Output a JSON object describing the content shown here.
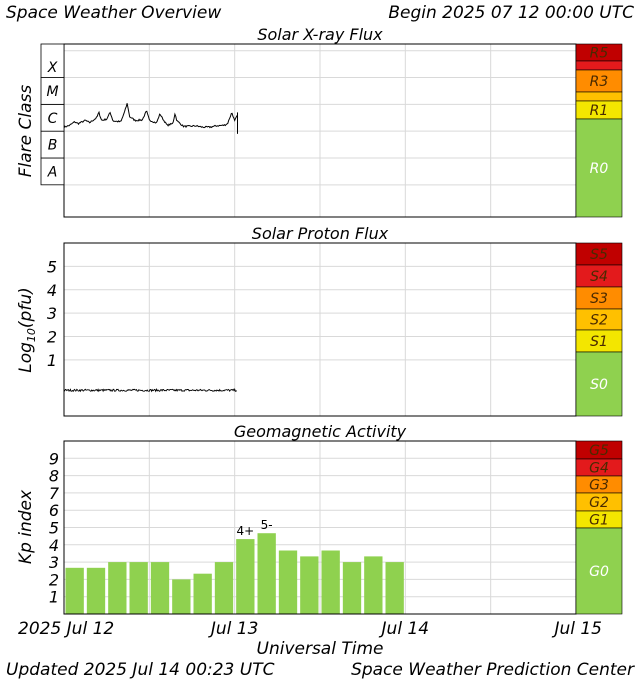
{
  "header": {
    "title": "Space Weather Overview",
    "begin": "Begin 2025 07 12 00:00 UTC"
  },
  "footer": {
    "updated": "Updated 2025 Jul 14 00:23 UTC",
    "center": "Space Weather Prediction Center",
    "xlabel": "Universal Time"
  },
  "colors": {
    "scale5": "#c00000",
    "scale4": "#e31a1c",
    "scale3": "#ff8c00",
    "scale2": "#ffc000",
    "scale1": "#f3e600",
    "scale0": "#8fd14f",
    "bar_green": "#8fd14f",
    "line": "#000000",
    "grid": "#d9d9d9"
  },
  "time_axis": {
    "ticks": [
      "2025 Jul 12",
      "Jul 13",
      "Jul 14",
      "Jul 15"
    ],
    "range_hours": [
      0,
      72
    ]
  },
  "chart_data": [
    {
      "type": "line",
      "title": "Solar X-ray Flux",
      "ylabel": "Flare Class",
      "y_scale": "log",
      "y_unit": "W/m^2",
      "ylim_log10": [
        -9.2,
        -2.75
      ],
      "class_labels": [
        {
          "label": "A",
          "log10": -7.5
        },
        {
          "label": "B",
          "log10": -6.5
        },
        {
          "label": "C",
          "log10": -5.5
        },
        {
          "label": "M",
          "log10": -4.5
        },
        {
          "label": "X",
          "log10": -3.6
        }
      ],
      "x_range_hours": [
        0,
        72
      ],
      "data_end_hours": 24.4,
      "series": [
        {
          "values_hours_log10": [
            [
              0.0,
              -5.85
            ],
            [
              0.8,
              -5.78
            ],
            [
              1.5,
              -5.65
            ],
            [
              2.0,
              -5.72
            ],
            [
              3.0,
              -5.6
            ],
            [
              3.6,
              -5.68
            ],
            [
              4.6,
              -5.5
            ],
            [
              4.9,
              -5.3
            ],
            [
              5.3,
              -5.6
            ],
            [
              6.0,
              -5.55
            ],
            [
              6.5,
              -5.3
            ],
            [
              6.9,
              -5.62
            ],
            [
              8.0,
              -5.65
            ],
            [
              8.6,
              -5.22
            ],
            [
              8.9,
              -4.95
            ],
            [
              9.2,
              -5.45
            ],
            [
              10.0,
              -5.6
            ],
            [
              11.0,
              -5.58
            ],
            [
              11.6,
              -5.25
            ],
            [
              12.0,
              -5.58
            ],
            [
              13.0,
              -5.7
            ],
            [
              13.5,
              -5.35
            ],
            [
              13.8,
              -5.5
            ],
            [
              14.5,
              -5.78
            ],
            [
              15.3,
              -5.72
            ],
            [
              15.6,
              -5.35
            ],
            [
              15.9,
              -5.62
            ],
            [
              16.8,
              -5.82
            ],
            [
              17.7,
              -5.82
            ],
            [
              18.5,
              -5.8
            ],
            [
              19.5,
              -5.85
            ],
            [
              20.5,
              -5.85
            ],
            [
              21.5,
              -5.8
            ],
            [
              22.5,
              -5.78
            ],
            [
              23.0,
              -5.72
            ],
            [
              23.6,
              -5.3
            ],
            [
              24.0,
              -5.62
            ],
            [
              24.4,
              -5.4
            ]
          ]
        }
      ],
      "scale": [
        "R5",
        "R3",
        "R1",
        "R0"
      ]
    },
    {
      "type": "line",
      "title": "Solar Proton Flux",
      "ylabel": "Log10(pfu)",
      "ylim": [
        -1.4,
        6.0
      ],
      "yticks": [
        1,
        2,
        3,
        4,
        5
      ],
      "x_range_hours": [
        0,
        72
      ],
      "data_end_hours": 24.4,
      "series": [
        {
          "values_hours": [
            [
              0,
              -0.3
            ],
            [
              8,
              -0.29
            ],
            [
              16,
              -0.3
            ],
            [
              24.4,
              -0.29
            ]
          ]
        }
      ],
      "scale": [
        "S5",
        "S4",
        "S3",
        "S2",
        "S1",
        "S0"
      ]
    },
    {
      "type": "bar",
      "title": "Geomagnetic Activity",
      "ylabel": "Kp index",
      "ylim": [
        0,
        10
      ],
      "yticks": [
        1,
        2,
        3,
        4,
        5,
        6,
        7,
        8,
        9
      ],
      "bar_interval_hours": 3,
      "values": [
        2.67,
        2.67,
        3.0,
        3.0,
        3.0,
        2.0,
        2.33,
        3.0,
        4.33,
        4.67,
        3.67,
        3.33,
        3.67,
        3.0,
        3.33,
        3.0
      ],
      "labels": {
        "8": "4+",
        "9": "5-"
      },
      "scale": [
        "G5",
        "G4",
        "G3",
        "G2",
        "G1",
        "G0"
      ]
    }
  ]
}
